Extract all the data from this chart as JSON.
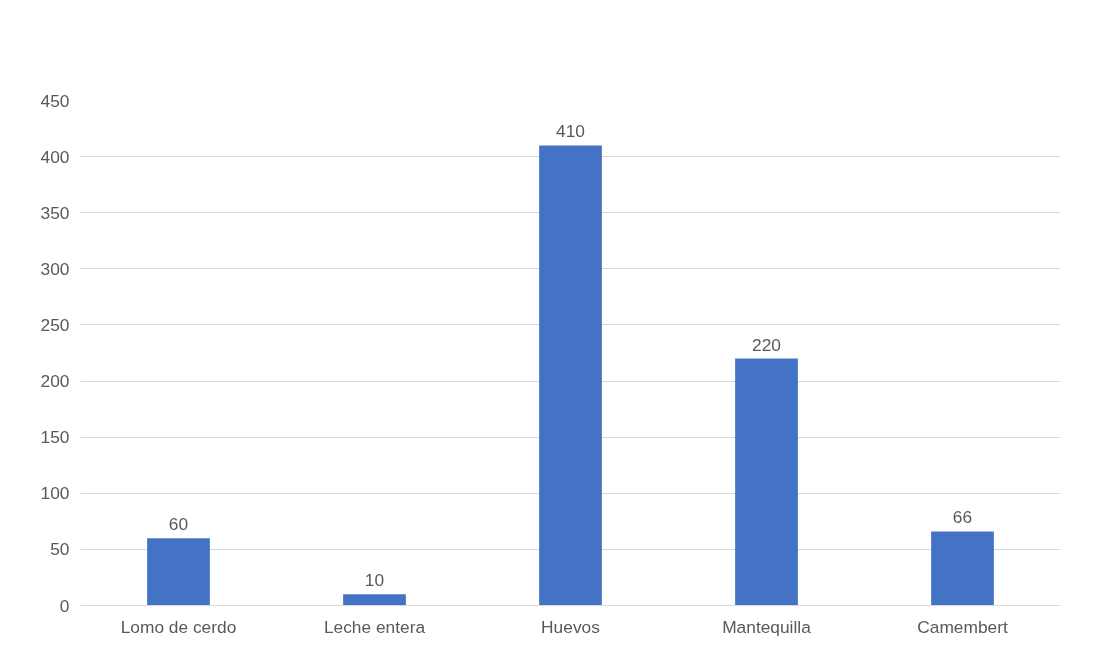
{
  "chart_data": {
    "type": "bar",
    "categories": [
      "Lomo de cerdo",
      "Leche entera",
      "Huevos",
      "Mantequilla",
      "Camembert"
    ],
    "values": [
      60,
      10,
      410,
      220,
      66
    ],
    "color": "#4472c4",
    "ylim": [
      0,
      450
    ],
    "yticks": [
      0,
      50,
      100,
      150,
      200,
      250,
      300,
      350,
      400,
      450
    ],
    "grid": "y",
    "data_labels": true
  }
}
